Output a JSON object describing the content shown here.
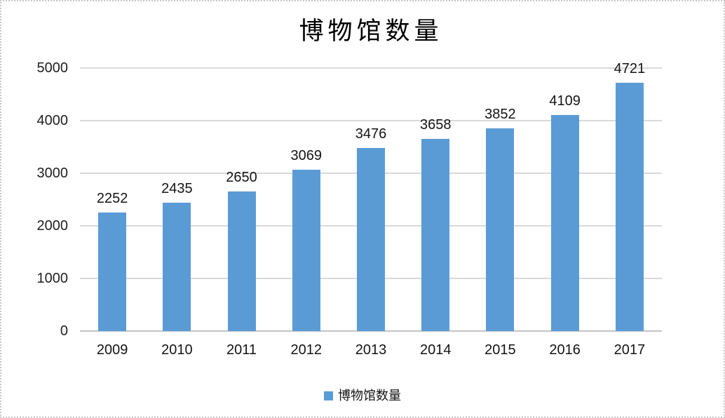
{
  "title": "博物馆数量",
  "legend": {
    "label": "博物馆数量",
    "marker_color": "#5B9BD5",
    "position": "bottom"
  },
  "colors": {
    "bar": "#5B9BD5",
    "gridline": "#D9D9D9",
    "axis_line": "#C3C3C3",
    "label_text": "#141414",
    "title_text": "#000000",
    "frame_border": "#C6C6C6",
    "background": "#FFFFFF"
  },
  "chart_data": {
    "type": "bar",
    "title": "博物馆数量",
    "series_name": "博物馆数量",
    "categories": [
      "2009",
      "2010",
      "2011",
      "2012",
      "2013",
      "2014",
      "2015",
      "2016",
      "2017"
    ],
    "values": [
      2252,
      2435,
      2650,
      3069,
      3476,
      3658,
      3852,
      4109,
      4721
    ],
    "xlabel": "",
    "ylabel": "",
    "ylim": [
      0,
      5000
    ],
    "yticks": [
      0,
      1000,
      2000,
      3000,
      4000,
      5000
    ],
    "grid": true,
    "data_labels": true,
    "legend_position": "bottom"
  }
}
